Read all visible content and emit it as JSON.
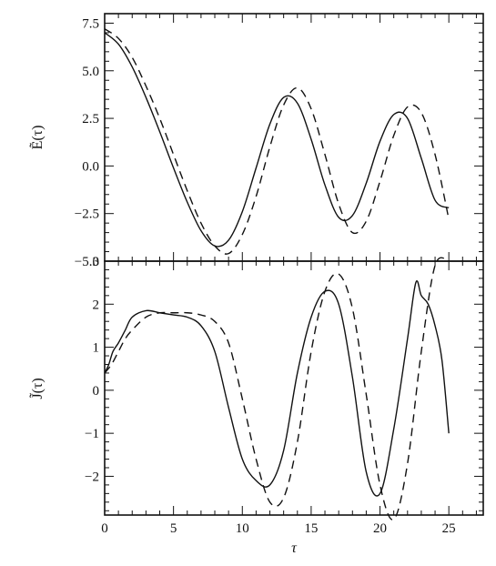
{
  "chart_data": [
    {
      "type": "line",
      "ylabel": "Ẽ(τ)",
      "xlim": [
        0,
        27.5
      ],
      "ylim": [
        -5.0,
        8.0
      ],
      "ytick_labels": [
        "7.5",
        "5.0",
        "2.5",
        "0.0",
        "−2.5",
        "−5.0"
      ],
      "ytick_values": [
        7.5,
        5.0,
        2.5,
        0.0,
        -2.5,
        -5.0
      ],
      "series": [
        {
          "style": "solid",
          "x": [
            0,
            1,
            2,
            3,
            4,
            5,
            6,
            7,
            8,
            9,
            10,
            11,
            12,
            13,
            14,
            15,
            16,
            17,
            18,
            19,
            20,
            21,
            22,
            23,
            24,
            25
          ],
          "y": [
            7.0,
            6.4,
            5.2,
            3.6,
            1.8,
            -0.1,
            -1.9,
            -3.4,
            -4.2,
            -3.9,
            -2.4,
            -0.1,
            2.2,
            3.6,
            3.3,
            1.4,
            -1.0,
            -2.7,
            -2.6,
            -0.9,
            1.3,
            2.7,
            2.5,
            0.4,
            -1.8,
            -2.2
          ]
        },
        {
          "style": "dashed",
          "x": [
            0,
            1,
            2,
            3,
            4,
            5,
            6,
            7,
            8,
            9,
            10,
            11,
            12,
            13,
            14,
            15,
            16,
            17,
            18,
            19,
            20,
            21,
            22,
            23,
            24,
            25
          ],
          "y": [
            7.2,
            6.7,
            5.7,
            4.2,
            2.5,
            0.6,
            -1.3,
            -3.0,
            -4.2,
            -4.6,
            -3.6,
            -1.6,
            1.0,
            3.2,
            4.1,
            3.0,
            0.6,
            -2.0,
            -3.5,
            -2.9,
            -0.8,
            1.6,
            3.1,
            2.8,
            0.6,
            -2.8
          ]
        }
      ]
    },
    {
      "type": "line",
      "ylabel": "J̃(τ)",
      "xlabel": "τ",
      "xlim": [
        0,
        27.5
      ],
      "ylim": [
        -2.9,
        3.0
      ],
      "xtick_labels": [
        "0",
        "5",
        "10",
        "15",
        "20",
        "25"
      ],
      "xtick_values": [
        0,
        5,
        10,
        15,
        20,
        25
      ],
      "ytick_labels": [
        "3",
        "2",
        "1",
        "0",
        "−1",
        "−2"
      ],
      "ytick_values": [
        3,
        2,
        1,
        0,
        -1,
        -2
      ],
      "series": [
        {
          "style": "solid",
          "x": [
            0,
            0.3,
            0.6,
            1,
            1.5,
            2,
            3,
            4,
            5,
            6,
            7,
            8,
            9,
            10,
            11,
            12,
            13,
            14,
            15,
            16,
            17,
            18,
            19,
            20,
            21,
            22,
            22.6,
            23,
            23.5,
            24,
            24.5,
            25
          ],
          "y": [
            0.4,
            0.6,
            0.9,
            1.1,
            1.4,
            1.7,
            1.85,
            1.8,
            1.75,
            1.7,
            1.5,
            0.9,
            -0.4,
            -1.6,
            -2.1,
            -2.2,
            -1.4,
            0.4,
            1.7,
            2.3,
            2.0,
            0.3,
            -1.9,
            -2.4,
            -0.9,
            1.2,
            2.5,
            2.2,
            2.0,
            1.5,
            0.7,
            -1.0
          ]
        },
        {
          "style": "dashed",
          "x": [
            0,
            0.5,
            1,
            1.5,
            2,
            3,
            4,
            5,
            6,
            7,
            8,
            9,
            10,
            11,
            12,
            13,
            14,
            15,
            16,
            17,
            18,
            19,
            20,
            21,
            22,
            23,
            24,
            25
          ],
          "y": [
            0.4,
            0.6,
            0.9,
            1.2,
            1.4,
            1.7,
            1.8,
            1.8,
            1.8,
            1.75,
            1.6,
            1.1,
            -0.2,
            -1.6,
            -2.6,
            -2.5,
            -1.2,
            0.9,
            2.3,
            2.7,
            1.9,
            -0.1,
            -2.2,
            -3.0,
            -1.7,
            0.9,
            2.9,
            3.0
          ]
        }
      ]
    }
  ]
}
